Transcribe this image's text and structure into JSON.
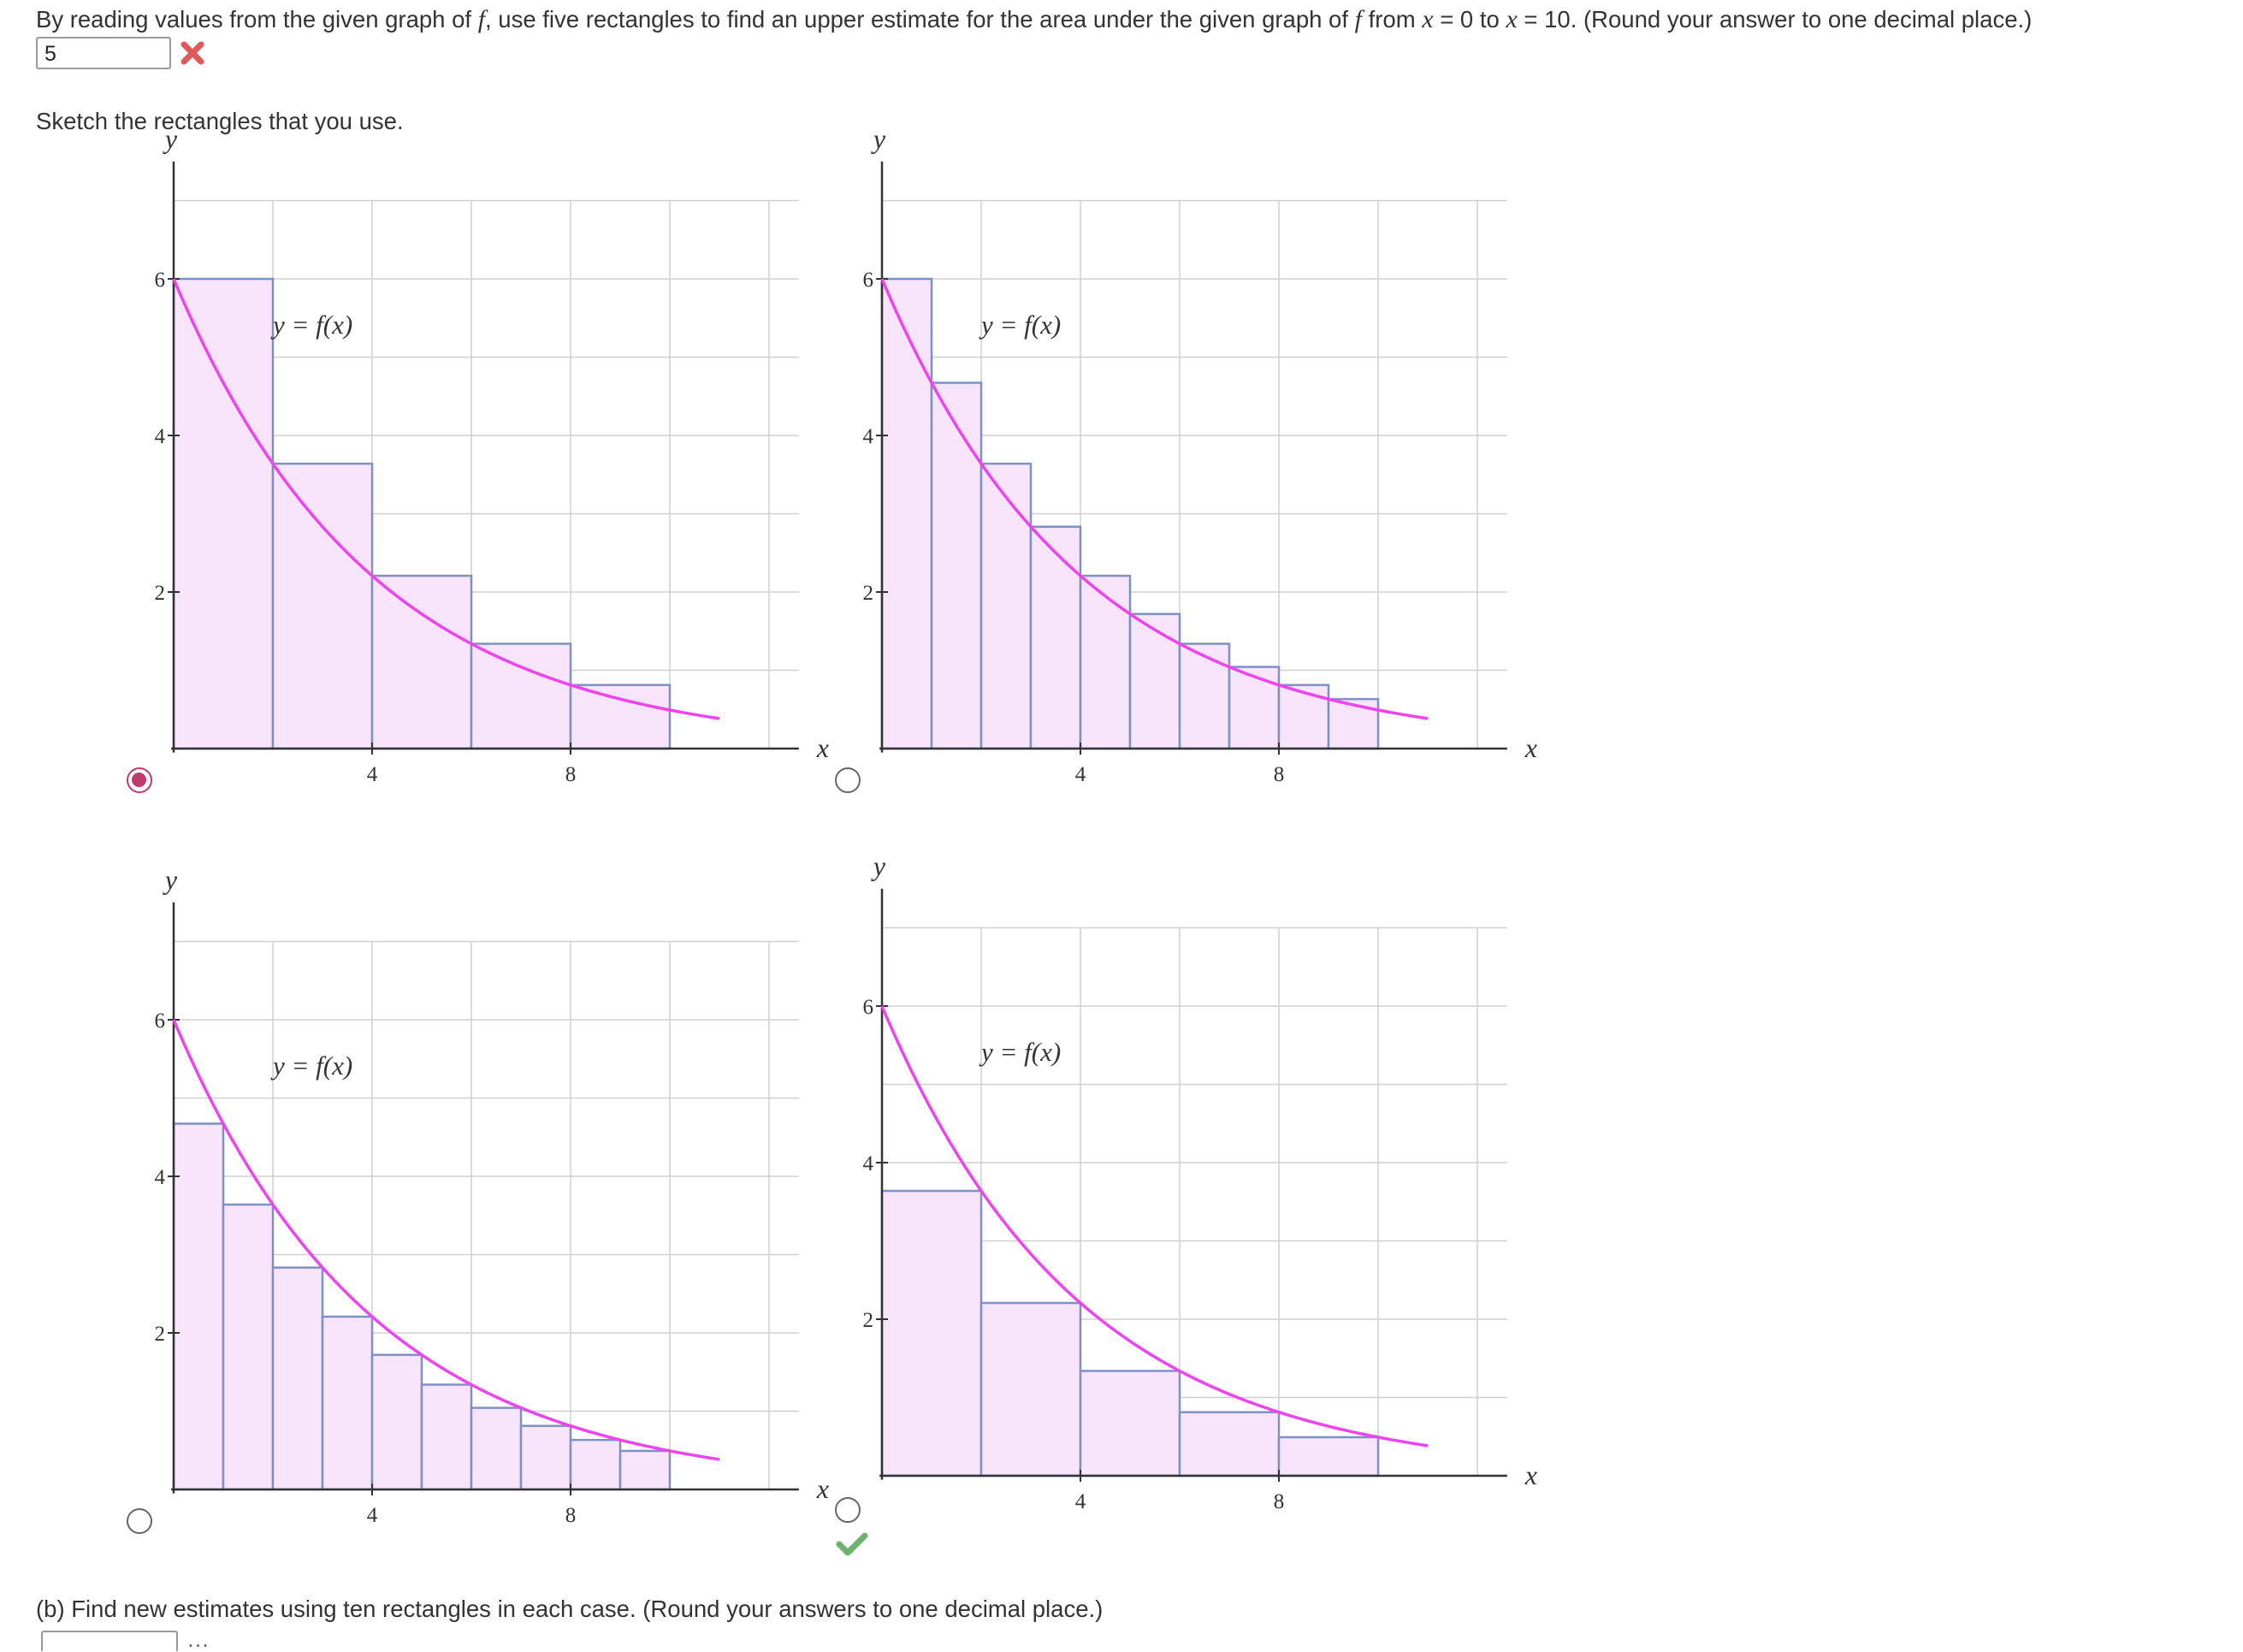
{
  "question": {
    "t1": "By reading values from the given graph of ",
    "f1": "f",
    "t2": ", use five rectangles to find an upper estimate for the area under the given graph of ",
    "f2": "f",
    "t3": " from ",
    "x1": "x",
    "t4": " = 0 to ",
    "x2": "x",
    "t5": " = 10. (Round your answer to one decimal place.)"
  },
  "answer": {
    "value": "5",
    "status": "incorrect",
    "status_icon": "x-mark-icon",
    "status_color": "#e05a5a"
  },
  "sketch_prompt": "Sketch the rectangles that you use.",
  "graphs": [
    {
      "id": "A",
      "selected": true,
      "correct_mark": false,
      "rect_count": 5,
      "rect_width": 2,
      "endpoint": "left",
      "y_label": "y",
      "x_label": "x",
      "curve_label": "y = f(x)",
      "y_ticks": [
        "2",
        "4",
        "6"
      ],
      "x_ticks": [
        "4",
        "8"
      ]
    },
    {
      "id": "B",
      "selected": false,
      "correct_mark": false,
      "rect_count": 10,
      "rect_width": 1,
      "endpoint": "left",
      "y_label": "y",
      "x_label": "x",
      "curve_label": "y = f(x)",
      "y_ticks": [
        "2",
        "4",
        "6"
      ],
      "x_ticks": [
        "4",
        "8"
      ]
    },
    {
      "id": "C",
      "selected": false,
      "correct_mark": false,
      "rect_count": 10,
      "rect_width": 1,
      "endpoint": "right",
      "y_label": "y",
      "x_label": "x",
      "curve_label": "y = f(x)",
      "y_ticks": [
        "2",
        "4",
        "6"
      ],
      "x_ticks": [
        "4",
        "8"
      ]
    },
    {
      "id": "D",
      "selected": false,
      "correct_mark": true,
      "rect_count": 5,
      "rect_width": 2,
      "endpoint": "right",
      "y_label": "y",
      "x_label": "x",
      "curve_label": "y = f(x)",
      "y_ticks": [
        "2",
        "4",
        "6"
      ],
      "x_ticks": [
        "4",
        "8"
      ]
    }
  ],
  "colors": {
    "curve": "#ee44ee",
    "rect_fill": "#f8e4fb",
    "rect_stroke": "#7f90c4",
    "grid": "#d0d0d0",
    "axis": "#333333",
    "radio_selected": "#c03a6b",
    "check": "#6db36d"
  },
  "part_b": {
    "text": "(b) Find new estimates using ten rectangles in each case. (Round your answers to one decimal place.)"
  }
}
